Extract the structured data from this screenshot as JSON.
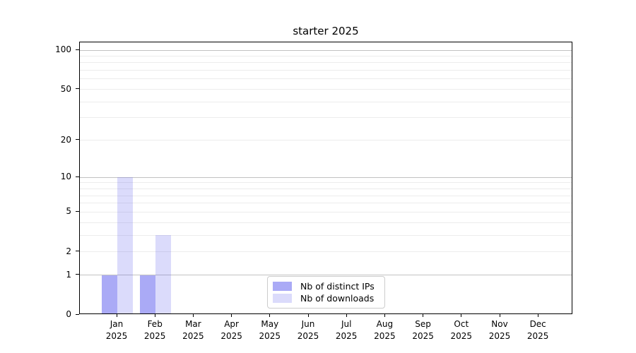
{
  "chart_data": {
    "type": "bar",
    "title": "starter 2025",
    "categories": [
      "Jan",
      "Feb",
      "Mar",
      "Apr",
      "May",
      "Jun",
      "Jul",
      "Aug",
      "Sep",
      "Oct",
      "Nov",
      "Dec"
    ],
    "year_label": "2025",
    "series": [
      {
        "name": "Nb of distinct IPs",
        "color": "rgba(85,85,238,0.5)",
        "values": [
          1,
          1,
          0,
          0,
          0,
          0,
          0,
          0,
          0,
          0,
          0,
          0
        ]
      },
      {
        "name": "Nb of downloads",
        "color": "rgba(85,85,238,0.21)",
        "values": [
          10,
          3,
          0,
          0,
          0,
          0,
          0,
          0,
          0,
          0,
          0,
          0
        ]
      }
    ],
    "y_scale": "log1p",
    "ylim": [
      0,
      114
    ],
    "y_ticks": [
      0,
      1,
      2,
      5,
      10,
      20,
      50,
      100
    ],
    "y_grid_major": [
      1,
      10,
      100
    ],
    "y_grid_minor": [
      2,
      3,
      4,
      5,
      6,
      7,
      8,
      9,
      20,
      30,
      40,
      50,
      60,
      70,
      80,
      90
    ],
    "grid_on": true,
    "legend_position": "lower center inside",
    "colors": {
      "grid_major": "#c2c2c2",
      "grid_minor": "#ececec",
      "spine": "#000000",
      "text": "#000000",
      "background": "#ffffff"
    }
  }
}
